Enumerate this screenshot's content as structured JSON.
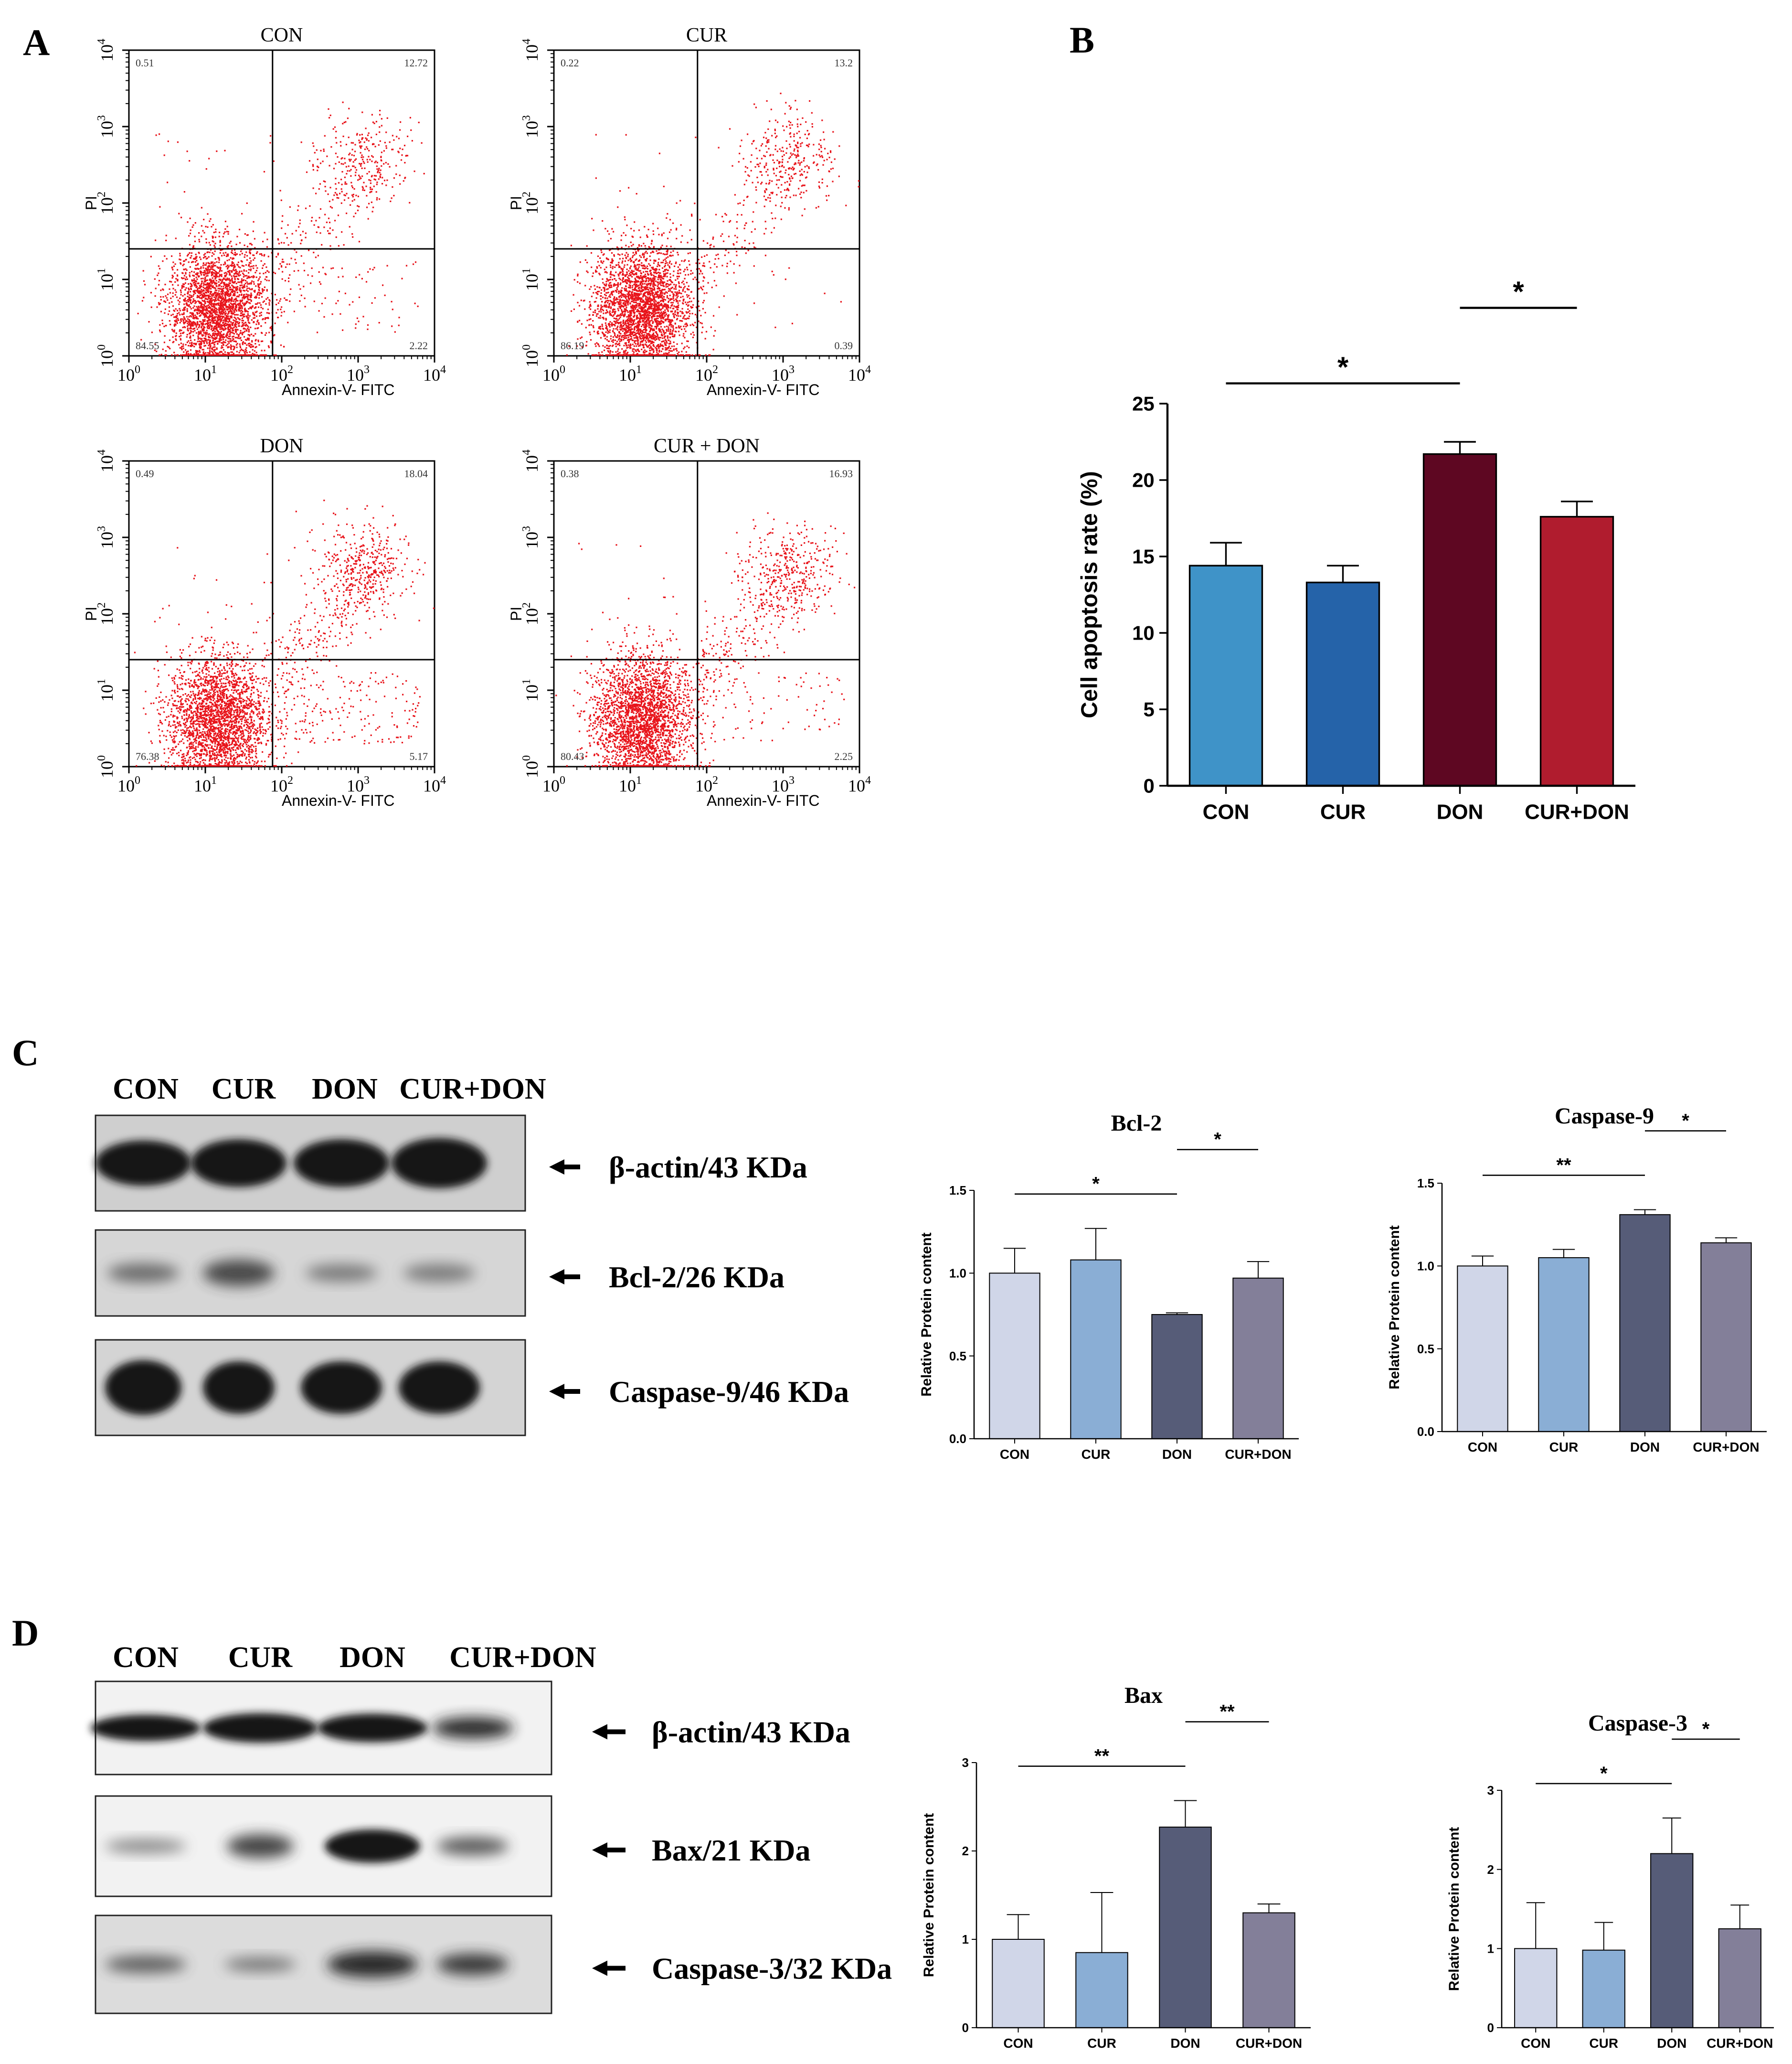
{
  "figure": {
    "panel_labels": {
      "A": "A",
      "B": "B",
      "C": "C",
      "D": "D"
    },
    "colors": {
      "flow_dots": "#e8141b",
      "b_bars": [
        "#3f93c8",
        "#2563a9",
        "#5e0722",
        "#b01c2e"
      ],
      "wb_bars": [
        "#d0d6e8",
        "#8aaed5",
        "#565c78",
        "#837f99"
      ]
    }
  },
  "flow": {
    "xlabel": "Annexin-V- FITC",
    "ylabel": "PI",
    "x_ticks": [
      "10",
      "10",
      "10",
      "10",
      "10"
    ],
    "tick_exponents": [
      "0",
      "1",
      "2",
      "3",
      "4"
    ],
    "plots": [
      {
        "title": "CON",
        "q_ul": "0.51",
        "q_ur": "12.72",
        "q_ll": "84.55",
        "q_lr": "2.22"
      },
      {
        "title": "CUR",
        "q_ul": "0.22",
        "q_ur": "13.2",
        "q_ll": "86.19",
        "q_lr": "0.39"
      },
      {
        "title": "DON",
        "q_ul": "0.49",
        "q_ur": "18.04",
        "q_ll": "76.38",
        "q_lr": "5.17"
      },
      {
        "title": "CUR + DON",
        "q_ul": "0.38",
        "q_ur": "16.93",
        "q_ll": "80.43",
        "q_lr": "2.25"
      }
    ]
  },
  "chart_data": [
    {
      "panel": "B",
      "type": "bar",
      "title": "",
      "categories": [
        "CON",
        "CUR",
        "DON",
        "CUR+DON"
      ],
      "values": [
        14.4,
        13.3,
        21.7,
        17.6
      ],
      "errors": [
        1.5,
        1.1,
        0.8,
        1.0
      ],
      "ylabel": "Cell apoptosis rate (%)",
      "xlabel": "",
      "ylim": [
        0,
        25
      ],
      "yticks": [
        "0",
        "5",
        "10",
        "15",
        "20",
        "25"
      ],
      "significance": [
        {
          "from": 0,
          "to": 2,
          "label": "*"
        },
        {
          "from": 2,
          "to": 3,
          "label": "*"
        }
      ]
    },
    {
      "panel": "C",
      "type": "bar",
      "title": "Bcl-2",
      "categories": [
        "CON",
        "CUR",
        "DON",
        "CUR+DON"
      ],
      "values": [
        1.0,
        1.08,
        0.75,
        0.97
      ],
      "errors": [
        0.15,
        0.19,
        0.01,
        0.1
      ],
      "ylabel": "Relative Protein content",
      "ylim": [
        0,
        1.5
      ],
      "yticks": [
        "0.0",
        "0.5",
        "1.0",
        "1.5"
      ],
      "significance": [
        {
          "from": 0,
          "to": 2,
          "label": "*"
        },
        {
          "from": 2,
          "to": 3,
          "label": "*"
        }
      ]
    },
    {
      "panel": "C",
      "type": "bar",
      "title": "Caspase-9",
      "categories": [
        "CON",
        "CUR",
        "DON",
        "CUR+DON"
      ],
      "values": [
        1.0,
        1.05,
        1.31,
        1.14
      ],
      "errors": [
        0.06,
        0.05,
        0.03,
        0.03
      ],
      "ylabel": "Relative Protein content",
      "ylim": [
        0,
        1.5
      ],
      "yticks": [
        "0.0",
        "0.5",
        "1.0",
        "1.5"
      ],
      "significance": [
        {
          "from": 0,
          "to": 2,
          "label": "**"
        },
        {
          "from": 2,
          "to": 3,
          "label": "*"
        }
      ]
    },
    {
      "panel": "D",
      "type": "bar",
      "title": "Bax",
      "categories": [
        "CON",
        "CUR",
        "DON",
        "CUR+DON"
      ],
      "values": [
        1.0,
        0.85,
        2.27,
        1.3
      ],
      "errors": [
        0.28,
        0.68,
        0.3,
        0.1
      ],
      "ylabel": "Relative Protein content",
      "ylim": [
        0,
        3
      ],
      "yticks": [
        "0",
        "1",
        "2",
        "3"
      ],
      "significance": [
        {
          "from": 0,
          "to": 2,
          "label": "**"
        },
        {
          "from": 2,
          "to": 3,
          "label": "**"
        }
      ]
    },
    {
      "panel": "D",
      "type": "bar",
      "title": "Caspase-3",
      "categories": [
        "CON",
        "CUR",
        "DON",
        "CUR+DON"
      ],
      "values": [
        1.0,
        0.98,
        2.2,
        1.25
      ],
      "errors": [
        0.58,
        0.35,
        0.45,
        0.3
      ],
      "ylabel": "Relative Protein content",
      "ylim": [
        0,
        3
      ],
      "yticks": [
        "0",
        "1",
        "2",
        "3"
      ],
      "significance": [
        {
          "from": 0,
          "to": 2,
          "label": "*"
        },
        {
          "from": 2,
          "to": 3,
          "label": "*"
        }
      ]
    }
  ],
  "blots": {
    "C": {
      "lanes": [
        "CON",
        "CUR",
        "DON",
        "CUR+DON"
      ],
      "bands": [
        "β-actin/43 KDa",
        "Bcl-2/26 KDa",
        "Caspase-9/46 KDa"
      ]
    },
    "D": {
      "lanes": [
        "CON",
        "CUR",
        "DON",
        "CUR+DON"
      ],
      "bands": [
        "β-actin/43 KDa",
        "Bax/21 KDa",
        "Caspase-3/32 KDa"
      ]
    }
  }
}
